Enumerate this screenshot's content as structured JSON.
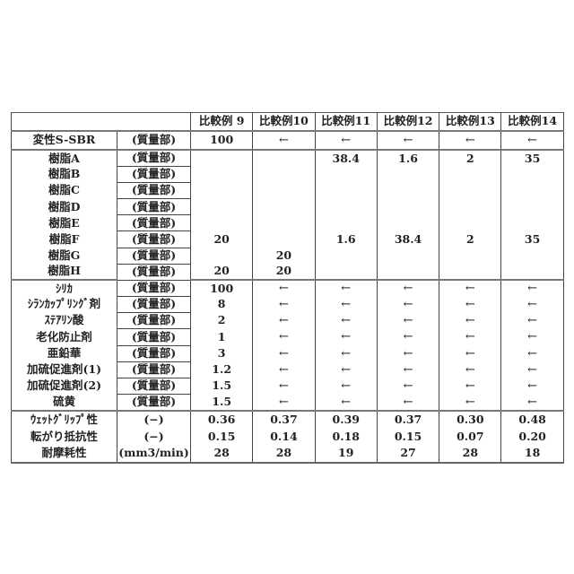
{
  "columns": [
    "比較例 9",
    "比較例10",
    "比較例11",
    "比較例12",
    "比較例13",
    "比較例14"
  ],
  "groups": [
    {
      "class": "sbr",
      "rows": [
        {
          "label": "変性S-SBR",
          "unit": "(質量部)",
          "values": [
            "100",
            "←",
            "←",
            "←",
            "←",
            "←"
          ]
        }
      ]
    },
    {
      "class": "res",
      "rows": [
        {
          "label": "樹脂A",
          "unit": "(質量部)",
          "values": [
            "",
            "",
            "38.4",
            "1.6",
            "2",
            "35"
          ]
        },
        {
          "label": "樹脂B",
          "unit": "(質量部)",
          "values": [
            "",
            "",
            "",
            "",
            "",
            ""
          ]
        },
        {
          "label": "樹脂C",
          "unit": "(質量部)",
          "values": [
            "",
            "",
            "",
            "",
            "",
            ""
          ]
        },
        {
          "label": "樹脂D",
          "unit": "(質量部)",
          "values": [
            "",
            "",
            "",
            "",
            "",
            ""
          ]
        },
        {
          "label": "樹脂E",
          "unit": "(質量部)",
          "values": [
            "",
            "",
            "",
            "",
            "",
            ""
          ]
        },
        {
          "label": "樹脂F",
          "unit": "(質量部)",
          "values": [
            "20",
            "",
            "1.6",
            "38.4",
            "2",
            "35"
          ]
        },
        {
          "label": "樹脂G",
          "unit": "(質量部)",
          "values": [
            "",
            "20",
            "",
            "",
            "",
            ""
          ]
        },
        {
          "label": "樹脂H",
          "unit": "(質量部)",
          "values": [
            "20",
            "20",
            "",
            "",
            "",
            ""
          ]
        }
      ]
    },
    {
      "class": "cmp",
      "rows": [
        {
          "label": "ｼﾘｶ",
          "unit": "(質量部)",
          "values": [
            "100",
            "←",
            "←",
            "←",
            "←",
            "←"
          ]
        },
        {
          "label": "ｼﾗﾝｶｯﾌﾟﾘﾝｸﾞ剤",
          "unit": "(質量部)",
          "values": [
            "8",
            "←",
            "←",
            "←",
            "←",
            "←"
          ]
        },
        {
          "label": "ｽﾃｱﾘﾝ酸",
          "unit": "(質量部)",
          "values": [
            "2",
            "←",
            "←",
            "←",
            "←",
            "←"
          ]
        },
        {
          "label": "老化防止剤",
          "unit": "(質量部)",
          "values": [
            "1",
            "←",
            "←",
            "←",
            "←",
            "←"
          ]
        },
        {
          "label": "亜鉛華",
          "unit": "(質量部)",
          "values": [
            "3",
            "←",
            "←",
            "←",
            "←",
            "←"
          ]
        },
        {
          "label": "加硫促進剤(1)",
          "unit": "(質量部)",
          "values": [
            "1.2",
            "←",
            "←",
            "←",
            "←",
            "←"
          ]
        },
        {
          "label": "加硫促進剤(2)",
          "unit": "(質量部)",
          "values": [
            "1.5",
            "←",
            "←",
            "←",
            "←",
            "←"
          ]
        },
        {
          "label": "硫黄",
          "unit": "(質量部)",
          "values": [
            "1.5",
            "←",
            "←",
            "←",
            "←",
            "←"
          ]
        }
      ]
    },
    {
      "class": "out",
      "rows": [
        {
          "label": "ｳｪｯﾄｸﾞﾘｯﾌﾟ性",
          "unit": "(−)",
          "values": [
            "0.36",
            "0.37",
            "0.39",
            "0.37",
            "0.30",
            "0.48"
          ]
        },
        {
          "label": "転がり抵抗性",
          "unit": "(−)",
          "values": [
            "0.15",
            "0.14",
            "0.18",
            "0.15",
            "0.07",
            "0.20"
          ]
        },
        {
          "label": "耐摩耗性",
          "unit": "(mm3/min)",
          "values": [
            "28",
            "28",
            "19",
            "27",
            "28",
            "18"
          ]
        }
      ]
    }
  ]
}
